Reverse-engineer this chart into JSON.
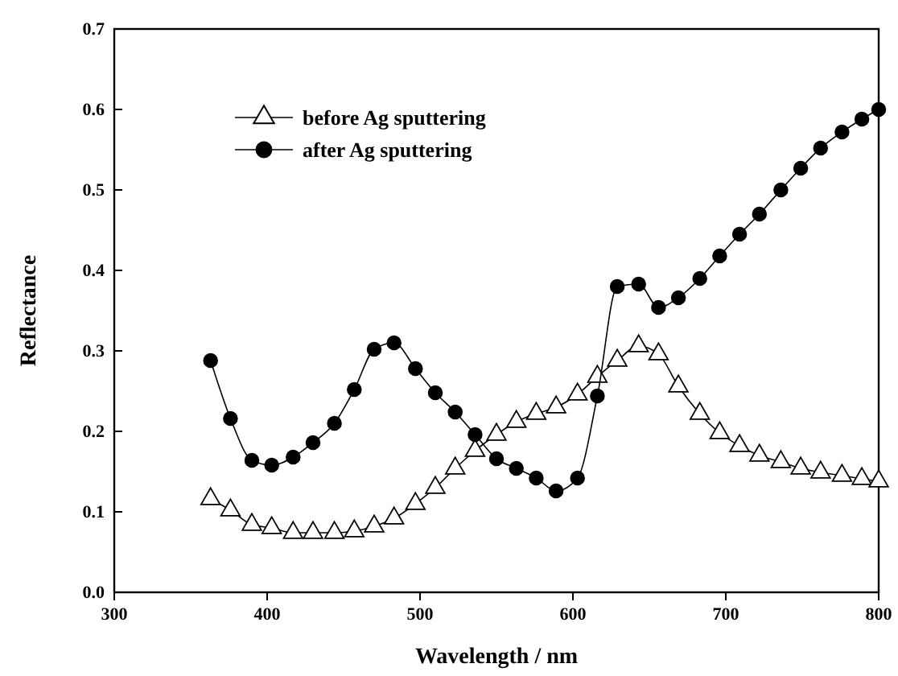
{
  "chart_data": {
    "type": "line",
    "xlabel": "Wavelength / nm",
    "ylabel": "Reflectance",
    "xlim": [
      300,
      800
    ],
    "ylim": [
      0,
      0.7
    ],
    "xticks": [
      300,
      400,
      500,
      600,
      700,
      800
    ],
    "yticks": [
      {
        "value": 0,
        "label": "0.0"
      },
      0.1,
      0.2,
      0.3,
      0.4,
      0.5,
      0.6,
      0.7
    ],
    "grid": false,
    "legend": "top left",
    "line_style": "solid",
    "x": [
      363,
      376,
      390,
      403,
      417,
      430,
      444,
      457,
      470,
      483,
      497,
      510,
      523,
      536,
      550,
      563,
      576,
      589,
      603,
      616,
      629,
      643,
      656,
      669,
      683,
      696,
      709,
      722,
      736,
      749,
      762,
      776,
      789,
      800
    ],
    "series": [
      {
        "name": "before Ag sputtering",
        "color": "#000000",
        "marker": "triangle",
        "values": [
          0.116,
          0.102,
          0.084,
          0.08,
          0.074,
          0.074,
          0.074,
          0.076,
          0.082,
          0.092,
          0.11,
          0.13,
          0.154,
          0.176,
          0.196,
          0.212,
          0.222,
          0.23,
          0.246,
          0.268,
          0.288,
          0.306,
          0.296,
          0.256,
          0.222,
          0.198,
          0.182,
          0.17,
          0.162,
          0.154,
          0.149,
          0.145,
          0.141,
          0.138
        ]
      },
      {
        "name": "after Ag sputtering",
        "color": "#000000",
        "marker": "circle",
        "values": [
          0.288,
          0.216,
          0.164,
          0.158,
          0.168,
          0.186,
          0.21,
          0.252,
          0.302,
          0.31,
          0.278,
          0.248,
          0.224,
          0.196,
          0.166,
          0.154,
          0.142,
          0.126,
          0.142,
          0.244,
          0.38,
          0.383,
          0.354,
          0.366,
          0.39,
          0.418,
          0.445,
          0.47,
          0.5,
          0.527,
          0.552,
          0.572,
          0.588,
          0.6
        ]
      }
    ]
  }
}
